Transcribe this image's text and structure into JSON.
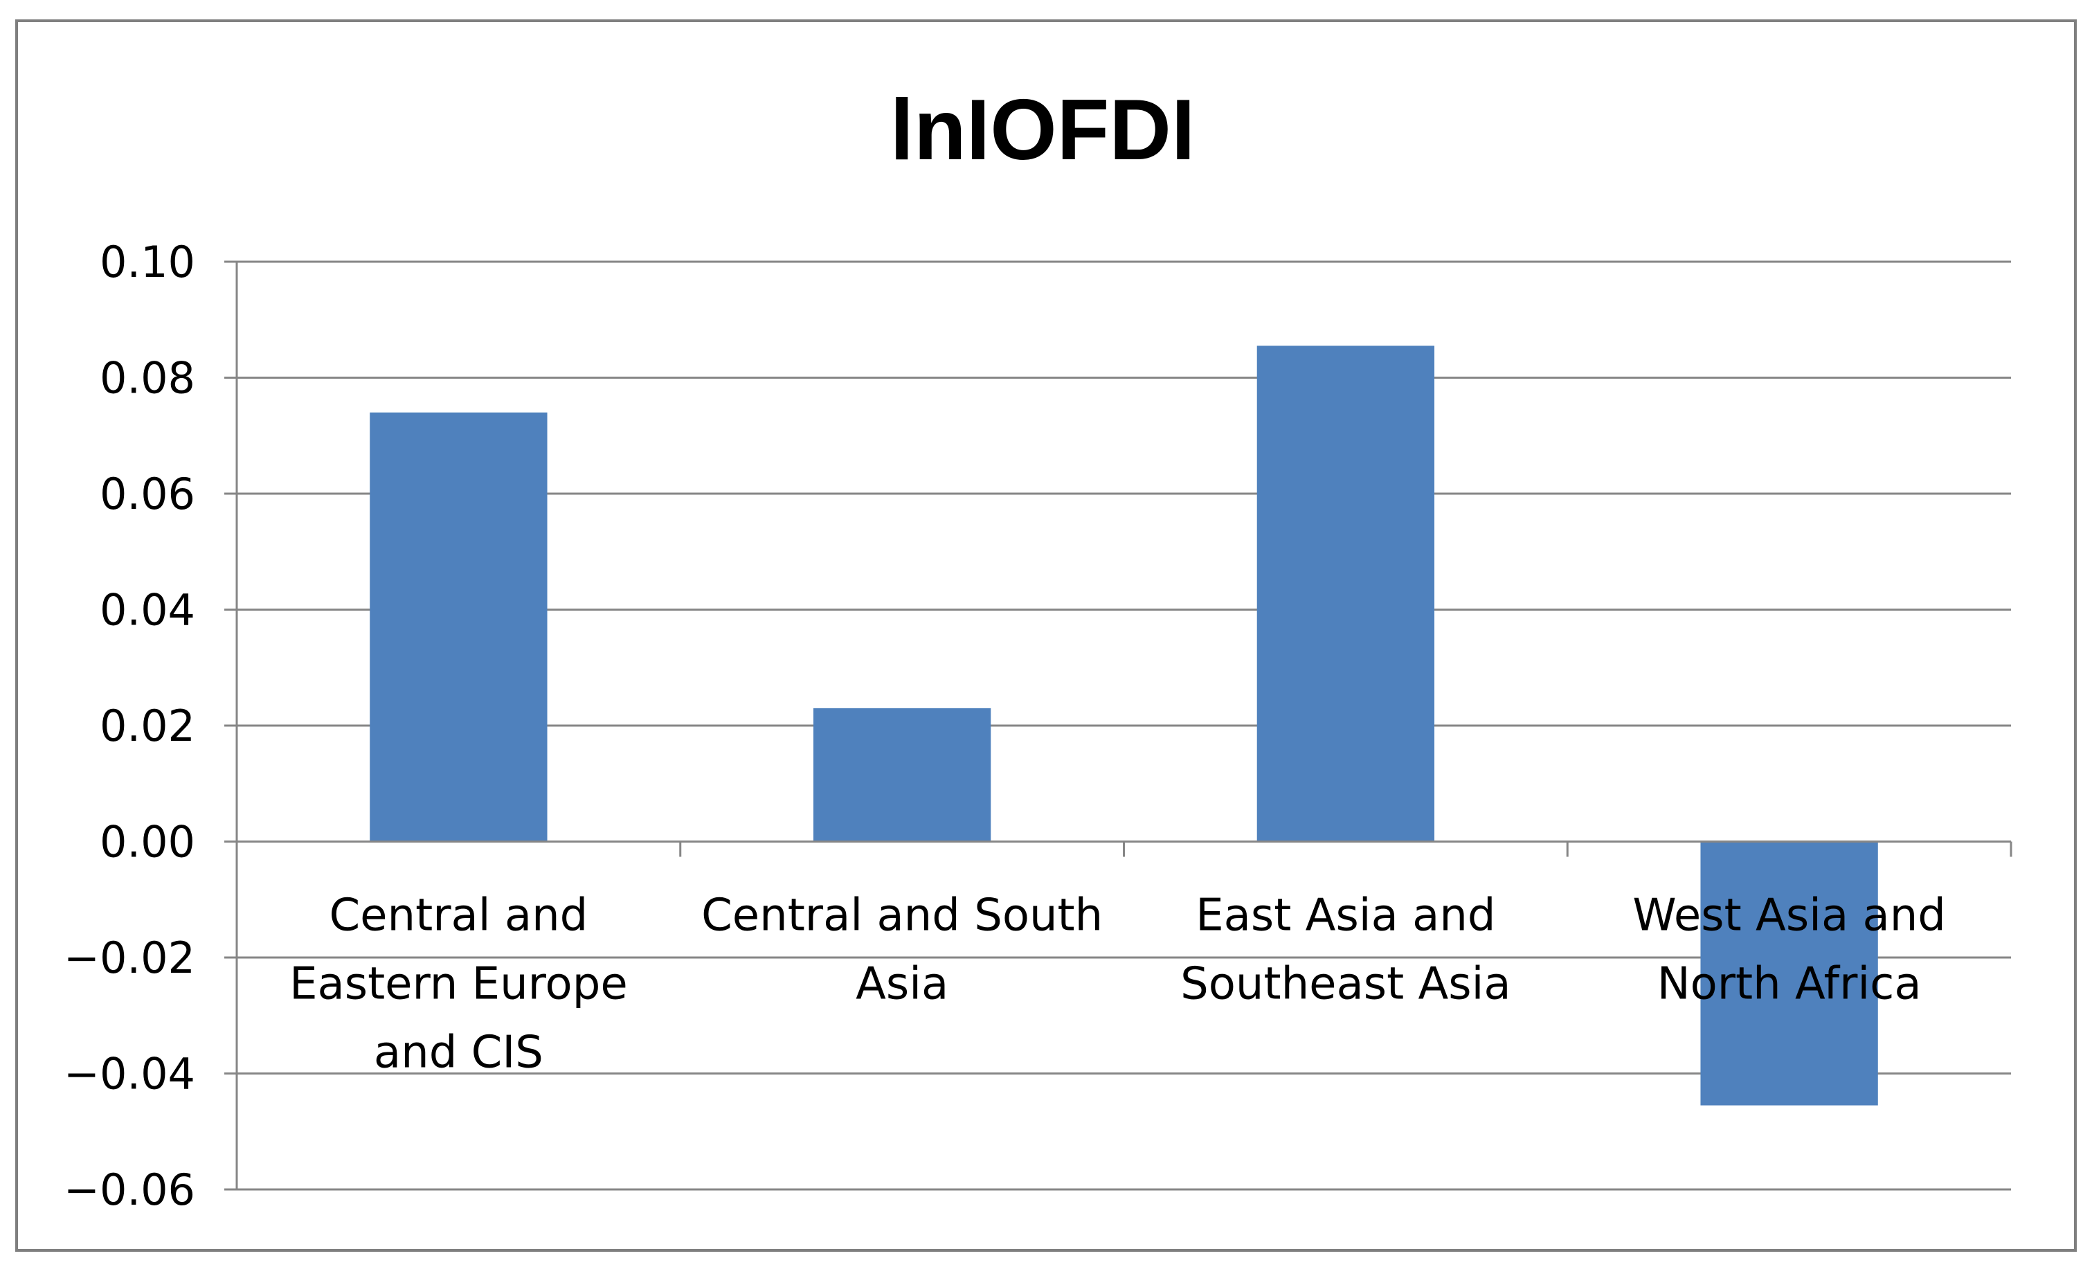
{
  "chart_data": {
    "type": "bar",
    "title": "lnIOFDI",
    "xlabel": "",
    "ylabel": "",
    "categories": [
      "Central and Eastern Europe and CIS",
      "Central and South Asia",
      "East Asia and Southeast Asia",
      "West Asia and North Africa"
    ],
    "category_lines": [
      [
        "Central and",
        "Eastern Europe",
        "and CIS"
      ],
      [
        "Central and South",
        "Asia"
      ],
      [
        "East Asia and",
        "Southeast Asia"
      ],
      [
        "West Asia and",
        "North Africa"
      ]
    ],
    "values": [
      0.074,
      0.023,
      0.0855,
      -0.0455
    ],
    "ylim": [
      -0.06,
      0.1
    ],
    "yticks": [
      0.1,
      0.08,
      0.06,
      0.04,
      0.02,
      0.0,
      -0.02,
      -0.04,
      -0.06
    ],
    "ytick_labels": [
      "0.10",
      "0.08",
      "0.06",
      "0.04",
      "0.02",
      "0.00",
      "−0.02",
      "−0.04",
      "−0.06"
    ],
    "grid": true,
    "legend": "none",
    "colors": {
      "bar": "#4f81bd",
      "grid": "#868686",
      "axis": "#868686",
      "text": "#000000",
      "frame": "#7f7f7f"
    }
  }
}
